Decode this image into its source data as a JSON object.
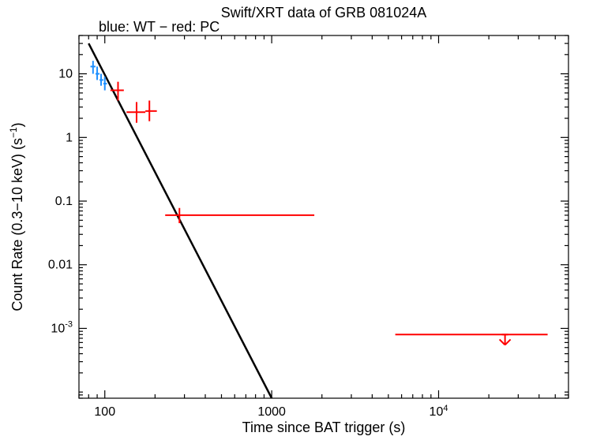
{
  "chart": {
    "type": "scatter-log-log",
    "title": "Swift/XRT data of GRB 081024A",
    "subtitle": "blue: WT − red: PC",
    "xlabel": "Time since BAT trigger (s)",
    "ylabel": "Count Rate (0.3−10 keV) (s",
    "ylabel_super": "−1",
    "ylabel_tail": ")",
    "title_fontsize": 18,
    "subtitle_fontsize": 18,
    "label_fontsize": 18,
    "tick_fontsize": 16,
    "background_color": "#ffffff",
    "axis_color": "#000000",
    "axis_width": 1.2,
    "xlim": [
      70,
      60000
    ],
    "ylim": [
      8e-05,
      40
    ],
    "x_major_ticks": [
      100,
      1000,
      10000
    ],
    "x_major_labels": [
      "100",
      "1000",
      "10^4"
    ],
    "y_major_ticks": [
      0.001,
      0.01,
      0.1,
      1,
      10
    ],
    "y_major_labels": [
      "10^-3",
      "0.01",
      "0.1",
      "1",
      "10"
    ],
    "blue_color": "#1e90ff",
    "red_color": "#ff0000",
    "black_color": "#000000",
    "line_width_fit": 2.5,
    "line_width_err": 2,
    "tick_len_major": 10,
    "tick_len_minor": 5,
    "fit_line": {
      "x1": 80,
      "y1": 30,
      "x2": 1000,
      "y2": 8e-05
    },
    "blue_points": [
      {
        "x": 85,
        "y": 13,
        "xerr_lo": 82,
        "xerr_hi": 88,
        "yerr_lo": 10,
        "yerr_hi": 16
      },
      {
        "x": 90,
        "y": 10,
        "xerr_lo": 88,
        "xerr_hi": 93,
        "yerr_lo": 8,
        "yerr_hi": 13
      },
      {
        "x": 95,
        "y": 8,
        "xerr_lo": 93,
        "xerr_hi": 98,
        "yerr_lo": 6.5,
        "yerr_hi": 10
      },
      {
        "x": 100,
        "y": 7,
        "xerr_lo": 98,
        "xerr_hi": 103,
        "yerr_lo": 5.5,
        "yerr_hi": 9
      }
    ],
    "red_points": [
      {
        "x": 120,
        "y": 5.5,
        "xerr_lo": 108,
        "xerr_hi": 130,
        "yerr_lo": 3.8,
        "yerr_hi": 7.5,
        "upper_limit": false
      },
      {
        "x": 155,
        "y": 2.5,
        "xerr_lo": 135,
        "xerr_hi": 175,
        "yerr_lo": 1.7,
        "yerr_hi": 3.6,
        "upper_limit": false
      },
      {
        "x": 185,
        "y": 2.6,
        "xerr_lo": 175,
        "xerr_hi": 205,
        "yerr_lo": 1.8,
        "yerr_hi": 3.8,
        "upper_limit": false
      },
      {
        "x": 280,
        "y": 0.06,
        "xerr_lo": 230,
        "xerr_hi": 1800,
        "yerr_lo": 0.045,
        "yerr_hi": 0.078,
        "upper_limit": false
      },
      {
        "x": 25000,
        "y": 0.0008,
        "xerr_lo": 5500,
        "xerr_hi": 45000,
        "yerr_lo": 0.00055,
        "yerr_hi": 0.0008,
        "upper_limit": true
      }
    ]
  }
}
